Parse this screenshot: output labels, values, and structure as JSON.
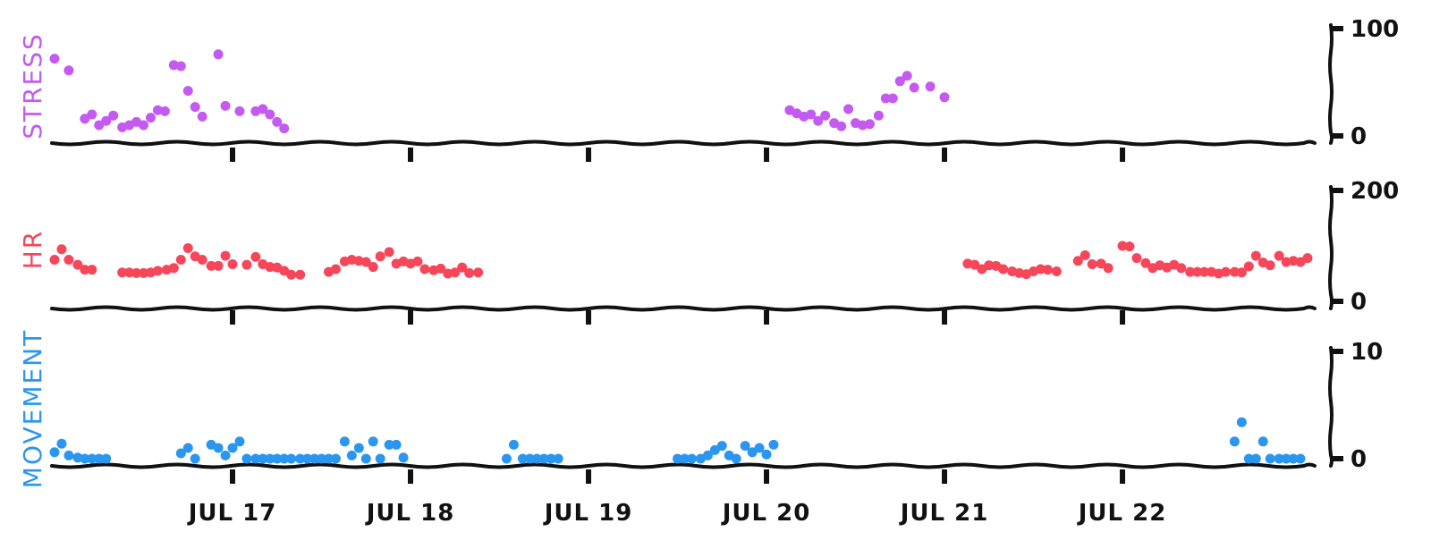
{
  "chart_data": {
    "type": "scatter",
    "x_tick_labels": [
      "JUL 17",
      "JUL 18",
      "JUL 19",
      "JUL 20",
      "JUL 21",
      "JUL 22"
    ],
    "panels": [
      {
        "name": "STRESS",
        "color": "#c45af0",
        "ylim": [
          0,
          100
        ],
        "yticks": [
          "100",
          "0"
        ],
        "points": [
          [
            0.0,
            72
          ],
          [
            0.08,
            61
          ],
          [
            0.17,
            16
          ],
          [
            0.21,
            20
          ],
          [
            0.25,
            10
          ],
          [
            0.29,
            14
          ],
          [
            0.33,
            19
          ],
          [
            0.38,
            8
          ],
          [
            0.42,
            10
          ],
          [
            0.46,
            13
          ],
          [
            0.5,
            10
          ],
          [
            0.54,
            17
          ],
          [
            0.58,
            24
          ],
          [
            0.62,
            23
          ],
          [
            0.67,
            66
          ],
          [
            0.71,
            65
          ],
          [
            0.75,
            42
          ],
          [
            0.79,
            27
          ],
          [
            0.83,
            18
          ],
          [
            0.92,
            76
          ],
          [
            0.96,
            28
          ],
          [
            1.04,
            23
          ],
          [
            1.13,
            23
          ],
          [
            1.17,
            25
          ],
          [
            1.21,
            20
          ],
          [
            1.25,
            13
          ],
          [
            1.29,
            7
          ],
          [
            4.13,
            24
          ],
          [
            4.17,
            21
          ],
          [
            4.21,
            18
          ],
          [
            4.25,
            20
          ],
          [
            4.29,
            14
          ],
          [
            4.33,
            19
          ],
          [
            4.38,
            12
          ],
          [
            4.42,
            9
          ],
          [
            4.46,
            25
          ],
          [
            4.5,
            12
          ],
          [
            4.54,
            10
          ],
          [
            4.58,
            11
          ],
          [
            4.63,
            19
          ],
          [
            4.67,
            35
          ],
          [
            4.71,
            35
          ],
          [
            4.75,
            51
          ],
          [
            4.79,
            56
          ],
          [
            4.83,
            45
          ],
          [
            4.92,
            46
          ],
          [
            5.0,
            36
          ]
        ]
      },
      {
        "name": "HR",
        "color": "#f5465a",
        "ylim": [
          0,
          200
        ],
        "yticks": [
          "200",
          "0"
        ],
        "points": [
          [
            0.0,
            75
          ],
          [
            0.04,
            94
          ],
          [
            0.08,
            75
          ],
          [
            0.13,
            66
          ],
          [
            0.17,
            57
          ],
          [
            0.21,
            57
          ],
          [
            0.38,
            52
          ],
          [
            0.42,
            52
          ],
          [
            0.46,
            51
          ],
          [
            0.5,
            51
          ],
          [
            0.54,
            52
          ],
          [
            0.58,
            55
          ],
          [
            0.63,
            57
          ],
          [
            0.67,
            60
          ],
          [
            0.71,
            75
          ],
          [
            0.75,
            96
          ],
          [
            0.79,
            81
          ],
          [
            0.83,
            75
          ],
          [
            0.88,
            64
          ],
          [
            0.92,
            64
          ],
          [
            0.96,
            82
          ],
          [
            1.0,
            67
          ],
          [
            1.08,
            66
          ],
          [
            1.13,
            80
          ],
          [
            1.17,
            67
          ],
          [
            1.21,
            62
          ],
          [
            1.25,
            61
          ],
          [
            1.29,
            55
          ],
          [
            1.33,
            48
          ],
          [
            1.38,
            48
          ],
          [
            1.54,
            53
          ],
          [
            1.58,
            58
          ],
          [
            1.63,
            72
          ],
          [
            1.67,
            75
          ],
          [
            1.71,
            73
          ],
          [
            1.75,
            71
          ],
          [
            1.79,
            62
          ],
          [
            1.83,
            81
          ],
          [
            1.88,
            89
          ],
          [
            1.92,
            68
          ],
          [
            1.96,
            72
          ],
          [
            2.0,
            68
          ],
          [
            2.04,
            72
          ],
          [
            2.08,
            58
          ],
          [
            2.13,
            56
          ],
          [
            2.17,
            59
          ],
          [
            2.21,
            50
          ],
          [
            2.25,
            52
          ],
          [
            2.29,
            61
          ],
          [
            2.33,
            51
          ],
          [
            2.38,
            52
          ],
          [
            5.13,
            68
          ],
          [
            5.17,
            66
          ],
          [
            5.21,
            58
          ],
          [
            5.25,
            65
          ],
          [
            5.29,
            64
          ],
          [
            5.33,
            58
          ],
          [
            5.38,
            54
          ],
          [
            5.42,
            51
          ],
          [
            5.46,
            49
          ],
          [
            5.5,
            54
          ],
          [
            5.54,
            58
          ],
          [
            5.58,
            57
          ],
          [
            5.63,
            54
          ],
          [
            5.75,
            73
          ],
          [
            5.79,
            83
          ],
          [
            5.83,
            67
          ],
          [
            5.88,
            68
          ],
          [
            5.92,
            60
          ],
          [
            6.0,
            100
          ],
          [
            6.04,
            99
          ],
          [
            6.08,
            78
          ],
          [
            6.13,
            69
          ],
          [
            6.17,
            60
          ],
          [
            6.21,
            65
          ],
          [
            6.25,
            61
          ],
          [
            6.29,
            66
          ],
          [
            6.33,
            60
          ],
          [
            6.38,
            53
          ],
          [
            6.42,
            53
          ],
          [
            6.46,
            53
          ],
          [
            6.5,
            53
          ],
          [
            6.54,
            50
          ],
          [
            6.58,
            53
          ],
          [
            6.63,
            53
          ],
          [
            6.67,
            52
          ],
          [
            6.71,
            63
          ],
          [
            6.75,
            82
          ],
          [
            6.79,
            70
          ],
          [
            6.83,
            65
          ],
          [
            6.88,
            82
          ],
          [
            6.92,
            71
          ],
          [
            6.96,
            73
          ],
          [
            7.0,
            71
          ],
          [
            7.04,
            78
          ]
        ]
      },
      {
        "name": "MOVEMENT",
        "color": "#2a96f0",
        "ylim": [
          0,
          10
        ],
        "yticks": [
          "10",
          "0"
        ],
        "points": [
          [
            0.0,
            0.6
          ],
          [
            0.04,
            1.4
          ],
          [
            0.08,
            0.3
          ],
          [
            0.13,
            0.1
          ],
          [
            0.17,
            0
          ],
          [
            0.21,
            0
          ],
          [
            0.25,
            0
          ],
          [
            0.29,
            0
          ],
          [
            0.71,
            0.5
          ],
          [
            0.75,
            1.0
          ],
          [
            0.79,
            0
          ],
          [
            0.88,
            1.3
          ],
          [
            0.92,
            1.0
          ],
          [
            0.96,
            0.3
          ],
          [
            1.0,
            1.0
          ],
          [
            1.04,
            1.6
          ],
          [
            1.08,
            0
          ],
          [
            1.13,
            0
          ],
          [
            1.17,
            0
          ],
          [
            1.21,
            0
          ],
          [
            1.25,
            0
          ],
          [
            1.29,
            0
          ],
          [
            1.33,
            0
          ],
          [
            1.38,
            0
          ],
          [
            1.42,
            0
          ],
          [
            1.46,
            0
          ],
          [
            1.5,
            0
          ],
          [
            1.54,
            0
          ],
          [
            1.58,
            0
          ],
          [
            1.63,
            1.6
          ],
          [
            1.67,
            0.3
          ],
          [
            1.71,
            1.0
          ],
          [
            1.75,
            0
          ],
          [
            1.79,
            1.6
          ],
          [
            1.83,
            0
          ],
          [
            1.88,
            1.3
          ],
          [
            1.92,
            1.3
          ],
          [
            1.96,
            0.1
          ],
          [
            2.54,
            0
          ],
          [
            2.58,
            1.3
          ],
          [
            2.63,
            0
          ],
          [
            2.67,
            0
          ],
          [
            2.71,
            0
          ],
          [
            2.75,
            0
          ],
          [
            2.79,
            0
          ],
          [
            2.83,
            0
          ],
          [
            3.5,
            0
          ],
          [
            3.54,
            0
          ],
          [
            3.58,
            0
          ],
          [
            3.63,
            0
          ],
          [
            3.67,
            0.3
          ],
          [
            3.71,
            0.8
          ],
          [
            3.75,
            1.2
          ],
          [
            3.79,
            0.3
          ],
          [
            3.83,
            0
          ],
          [
            3.88,
            1.2
          ],
          [
            3.92,
            0.6
          ],
          [
            3.96,
            1.0
          ],
          [
            4.0,
            0.4
          ],
          [
            4.04,
            1.3
          ],
          [
            6.63,
            1.6
          ],
          [
            6.67,
            3.4
          ],
          [
            6.71,
            0
          ],
          [
            6.75,
            0
          ],
          [
            6.79,
            1.6
          ],
          [
            6.83,
            0
          ],
          [
            6.88,
            0
          ],
          [
            6.92,
            0
          ],
          [
            6.96,
            0
          ],
          [
            7.0,
            0
          ]
        ]
      }
    ]
  }
}
